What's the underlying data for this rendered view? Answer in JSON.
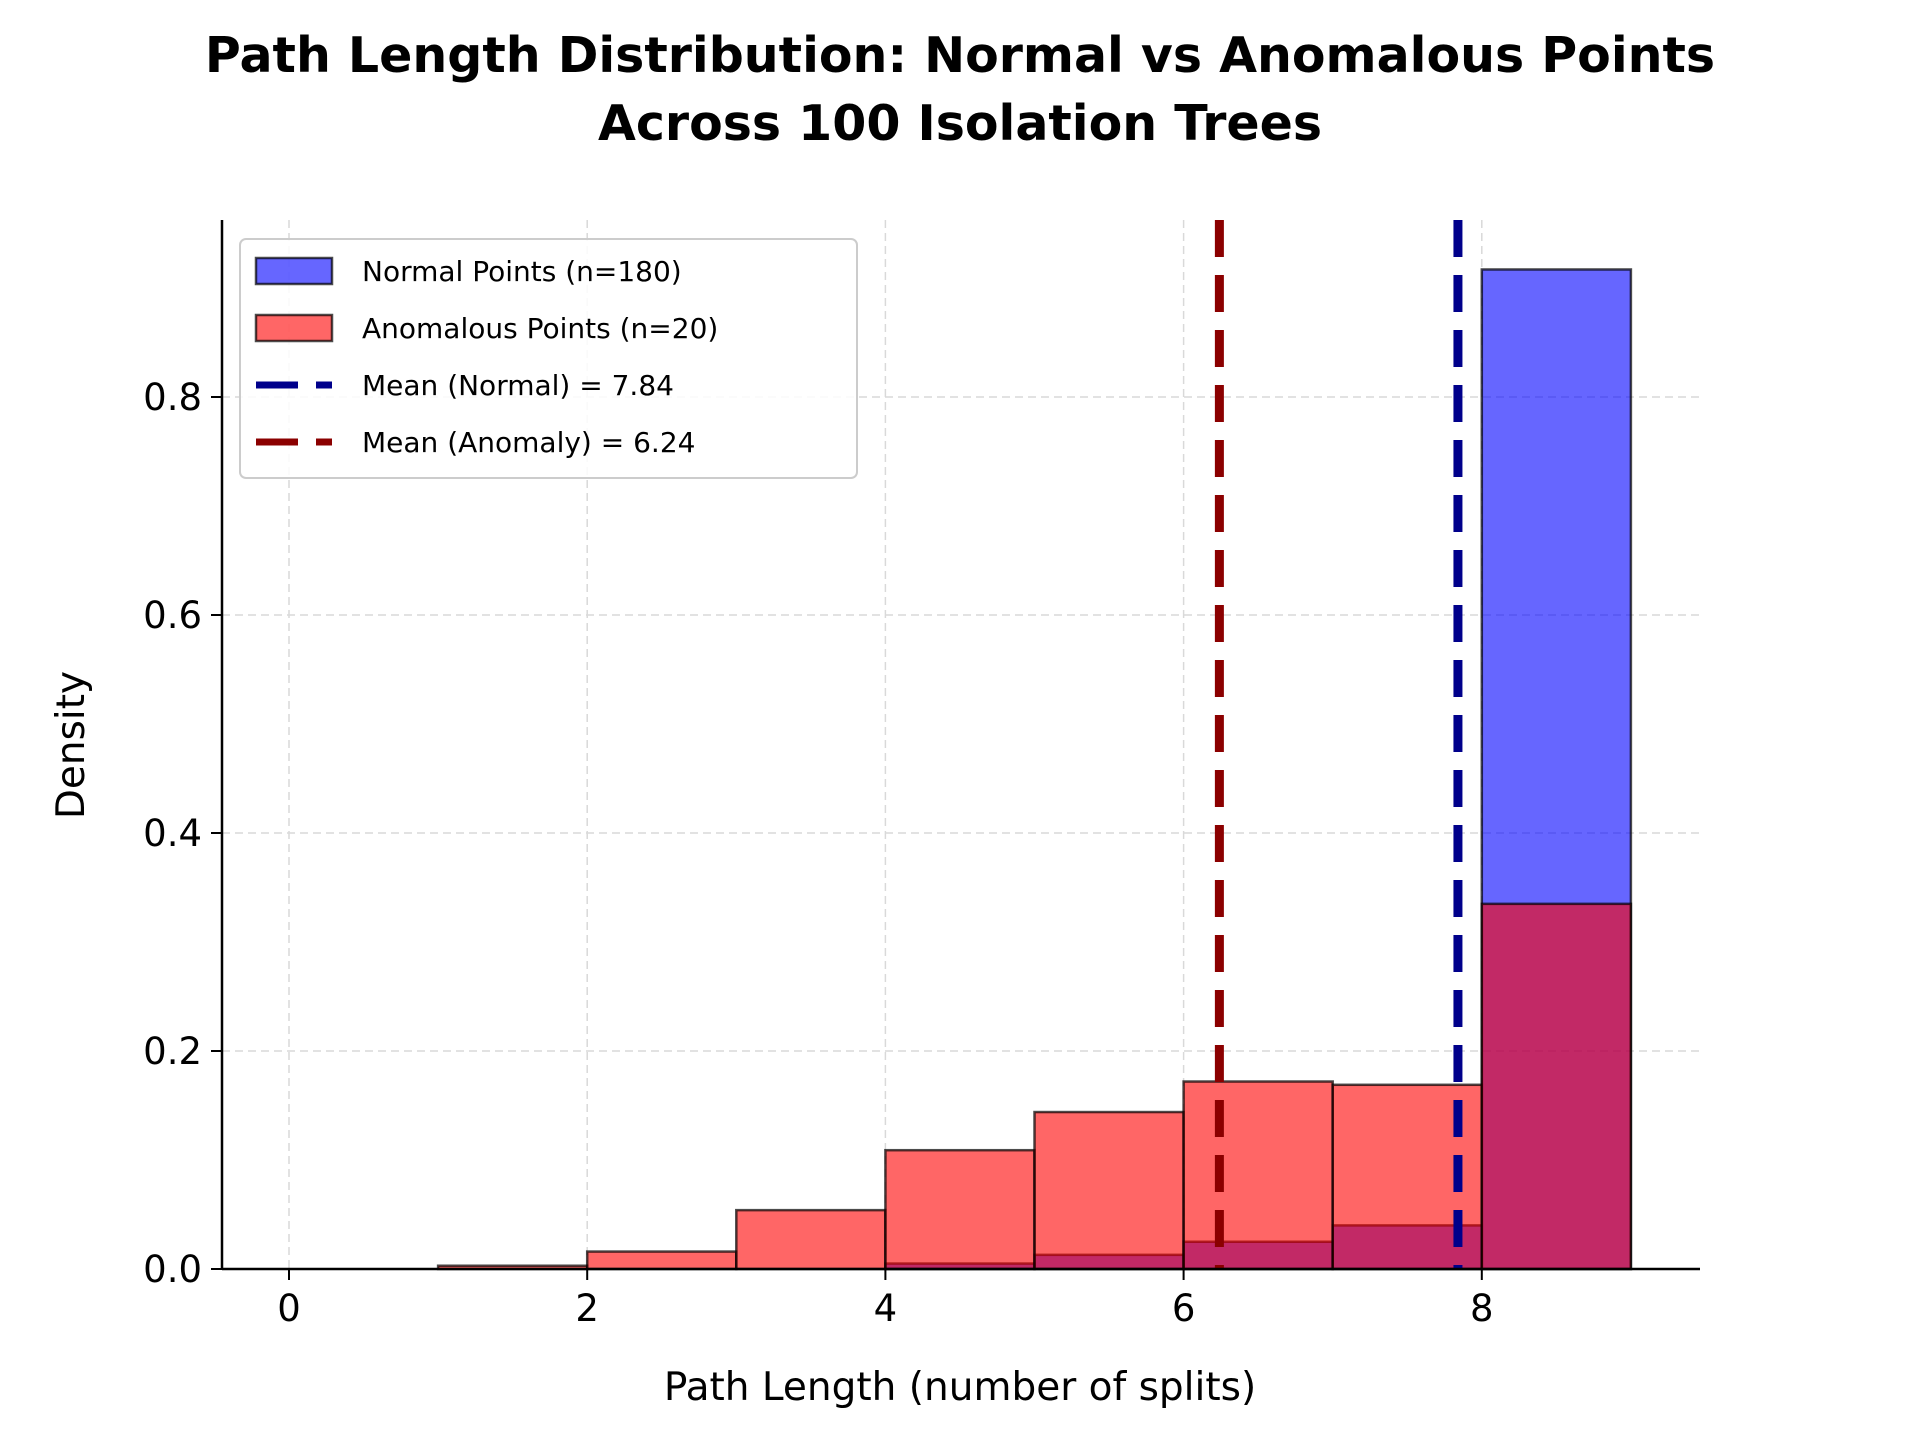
{
  "chart_data": {
    "type": "bar",
    "subtype": "overlapping-histogram",
    "title_line1": "Path Length Distribution: Normal vs Anomalous Points",
    "title_line2": "Across 100 Isolation Trees",
    "xlabel": "Path Length (number of splits)",
    "ylabel": "Density",
    "xlim": [
      -0.5,
      9.45
    ],
    "ylim": [
      0,
      0.96
    ],
    "xticks": [
      "0",
      "2",
      "4",
      "6",
      "8"
    ],
    "yticks": [
      "0.0",
      "0.2",
      "0.4",
      "0.6",
      "0.8"
    ],
    "grid": true,
    "legend_position": "top-left",
    "bin_edges": [
      0,
      1,
      2,
      3,
      4,
      5,
      6,
      7,
      8,
      9
    ],
    "series": [
      {
        "name": "Normal Points (n=180)",
        "color": "#0000ff",
        "values": [
          0,
          0,
          0,
          0,
          0.005,
          0.013,
          0.025,
          0.04,
          0.917
        ]
      },
      {
        "name": "Anomalous Points (n=20)",
        "color": "#ff0000",
        "values": [
          0,
          0.003,
          0.016,
          0.054,
          0.109,
          0.144,
          0.172,
          0.169,
          0.335
        ]
      }
    ],
    "mean_lines": [
      {
        "name": "Mean (Normal) = 7.84",
        "value": 7.84,
        "color": "#00008b"
      },
      {
        "name": "Mean (Anomaly) = 6.24",
        "value": 6.24,
        "color": "#8b0000"
      }
    ]
  }
}
